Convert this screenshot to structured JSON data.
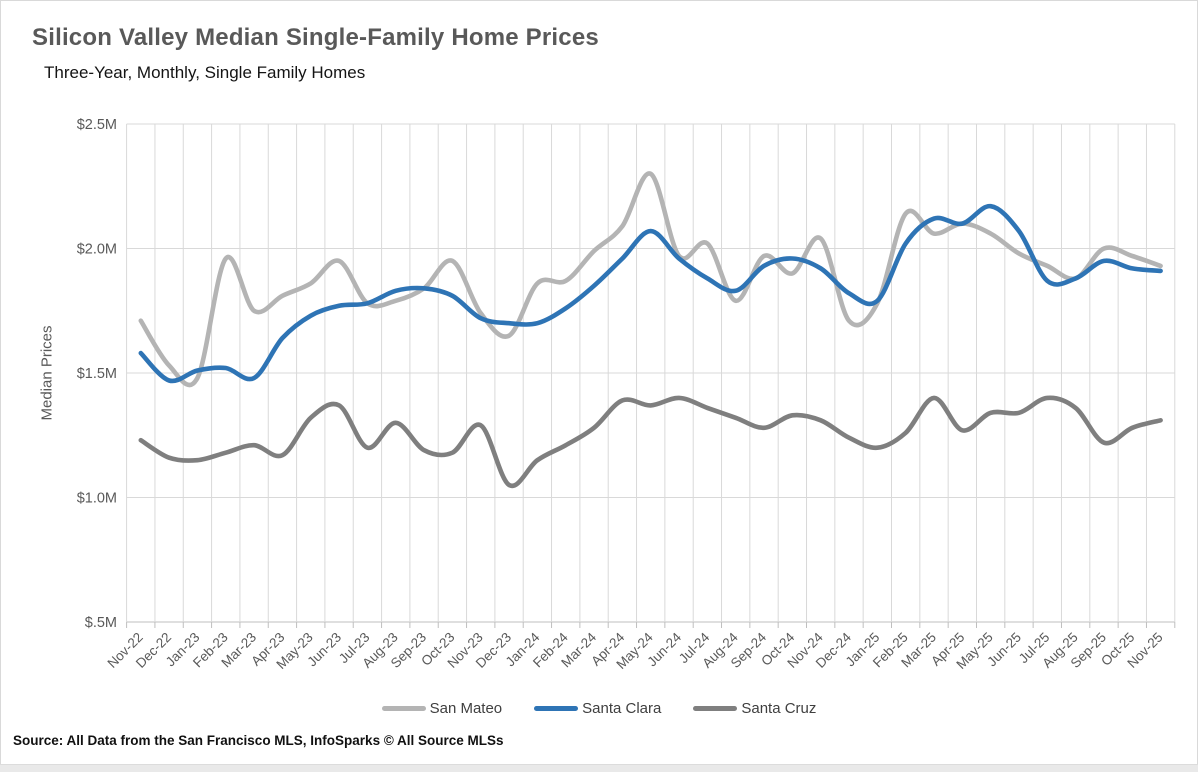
{
  "header": {
    "title": "Silicon Valley Median Single-Family Home Prices",
    "subtitle": "Three-Year, Monthly, Single Family Homes"
  },
  "chart_data": {
    "type": "line",
    "title": "Silicon Valley Median Single-Family Home Prices",
    "xlabel": "",
    "ylabel": "Median Prices",
    "ylim": [
      0.5,
      2.5
    ],
    "grid": true,
    "legend_position": "bottom",
    "smooth_lines": true,
    "yticks": [
      {
        "value": 2.5,
        "label": "$2.5M"
      },
      {
        "value": 2.0,
        "label": "$2.0M"
      },
      {
        "value": 1.5,
        "label": "$1.5M"
      },
      {
        "value": 1.0,
        "label": "$1.0M"
      },
      {
        "value": 0.5,
        "label": "$.5M"
      }
    ],
    "categories": [
      "Nov-22",
      "Dec-22",
      "Jan-23",
      "Feb-23",
      "Mar-23",
      "Apr-23",
      "May-23",
      "Jun-23",
      "Jul-23",
      "Aug-23",
      "Sep-23",
      "Oct-23",
      "Nov-23",
      "Dec-23",
      "Jan-24",
      "Feb-24",
      "Mar-24",
      "Apr-24",
      "May-24",
      "Jun-24",
      "Jul-24",
      "Aug-24",
      "Sep-24",
      "Oct-24",
      "Nov-24",
      "Dec-24",
      "Jan-25",
      "Feb-25",
      "Mar-25",
      "Apr-25",
      "May-25",
      "Jun-25",
      "Jul-25",
      "Aug-25",
      "Sep-25",
      "Oct-25",
      "Nov-25"
    ],
    "series": [
      {
        "name": "San Mateo",
        "color": "#b4b4b4",
        "values": [
          1.71,
          1.53,
          1.48,
          1.96,
          1.75,
          1.81,
          1.86,
          1.95,
          1.78,
          1.79,
          1.84,
          1.95,
          1.74,
          1.65,
          1.86,
          1.87,
          1.99,
          2.09,
          2.3,
          1.97,
          2.02,
          1.79,
          1.97,
          1.9,
          2.04,
          1.71,
          1.78,
          2.14,
          2.06,
          2.1,
          2.06,
          1.98,
          1.93,
          1.88,
          2.0,
          1.97,
          1.93
        ]
      },
      {
        "name": "Santa Clara",
        "color": "#2e74b5",
        "values": [
          1.58,
          1.47,
          1.51,
          1.52,
          1.48,
          1.64,
          1.73,
          1.77,
          1.78,
          1.83,
          1.84,
          1.81,
          1.72,
          1.7,
          1.7,
          1.76,
          1.85,
          1.96,
          2.07,
          1.96,
          1.88,
          1.83,
          1.93,
          1.96,
          1.92,
          1.82,
          1.79,
          2.02,
          2.12,
          2.1,
          2.17,
          2.07,
          1.87,
          1.88,
          1.95,
          1.92,
          1.91
        ]
      },
      {
        "name": "Santa Cruz",
        "color": "#7f7f7f",
        "values": [
          1.23,
          1.16,
          1.15,
          1.18,
          1.21,
          1.17,
          1.32,
          1.37,
          1.2,
          1.3,
          1.19,
          1.18,
          1.29,
          1.05,
          1.15,
          1.21,
          1.28,
          1.39,
          1.37,
          1.4,
          1.36,
          1.32,
          1.28,
          1.33,
          1.31,
          1.24,
          1.2,
          1.26,
          1.4,
          1.27,
          1.34,
          1.34,
          1.4,
          1.36,
          1.22,
          1.28,
          1.31
        ]
      }
    ],
    "colors": {
      "gridline": "#d9d9d9",
      "axis": "#bfbfbf",
      "tick_text": "#595959",
      "title_text": "#595959"
    }
  },
  "footer": {
    "source": "Source: All Data from the San Francisco MLS, InfoSparks © All Source MLSs"
  }
}
